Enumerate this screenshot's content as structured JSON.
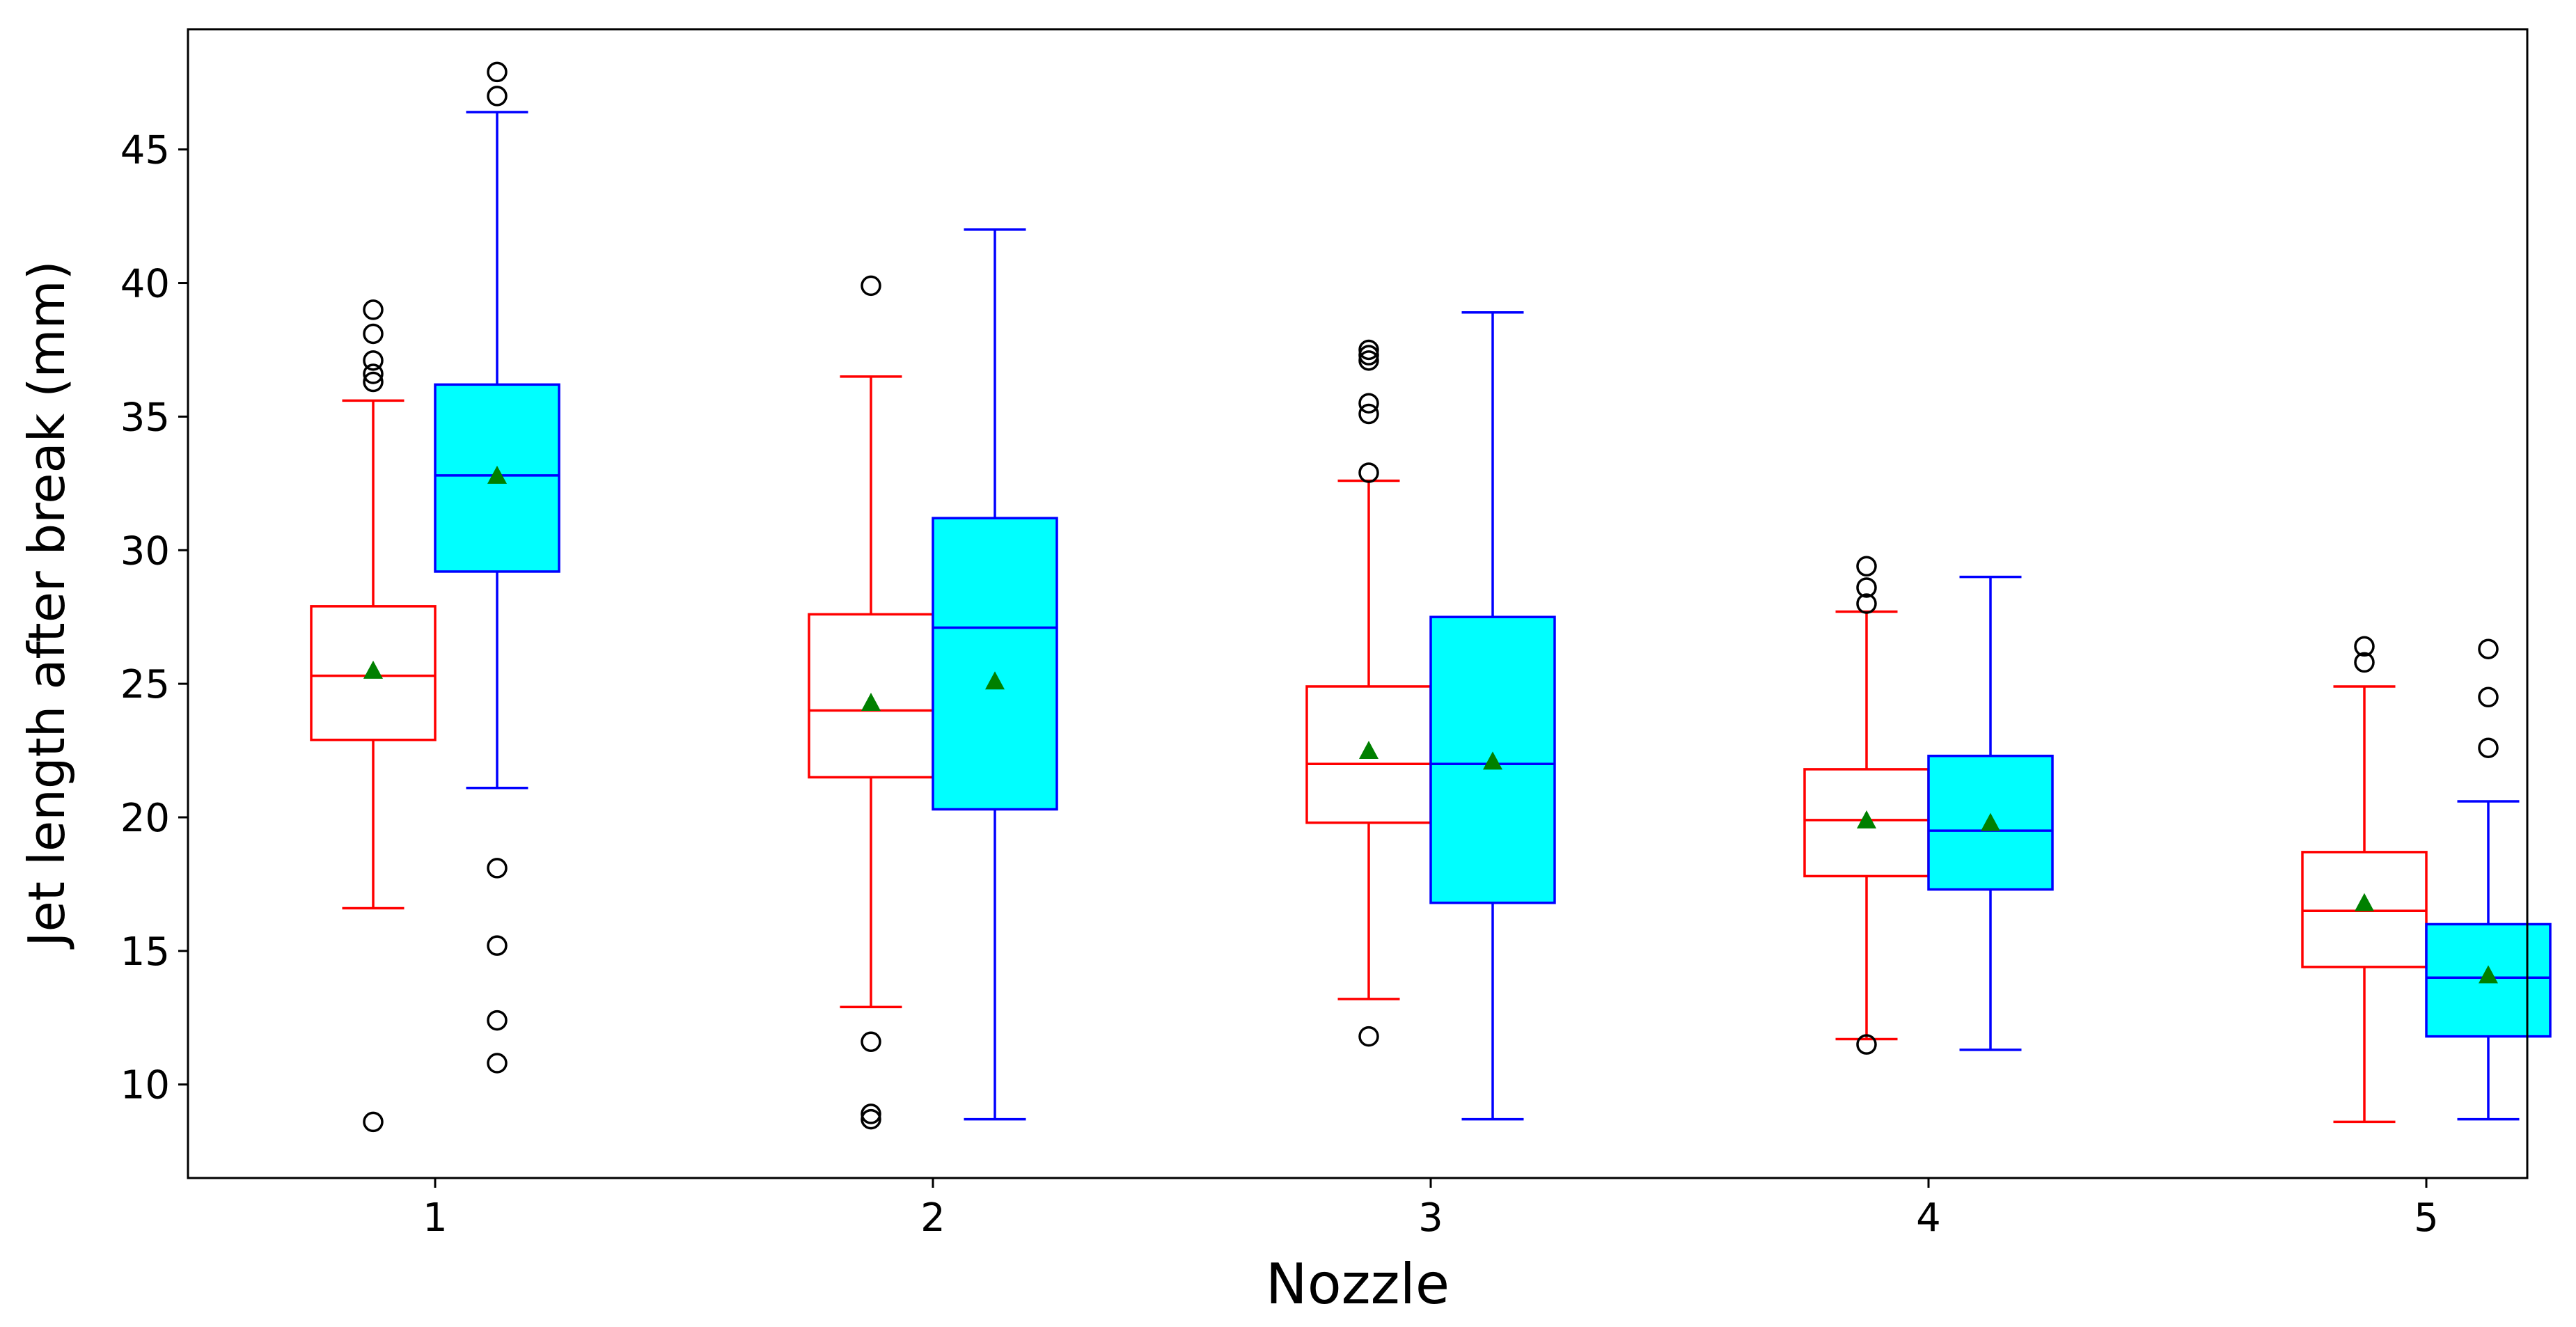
{
  "chart_data": {
    "type": "box",
    "title": "",
    "xlabel": "Nozzle",
    "ylabel": "Jet length after break (mm)",
    "ylim": [
      6.5,
      49.5
    ],
    "yticks": [
      10,
      15,
      20,
      25,
      30,
      35,
      40,
      45
    ],
    "categories": [
      "1",
      "2",
      "3",
      "4",
      "5"
    ],
    "mean_marker_color": "#008000",
    "series": [
      {
        "name": "series-red",
        "edge_color": "#ff0000",
        "fill_color": "#ffffff",
        "boxes": [
          {
            "whisker_low": 16.6,
            "q1": 22.9,
            "median": 25.3,
            "q3": 27.9,
            "whisker_high": 35.6,
            "mean": 25.5,
            "outliers": [
              8.6,
              36.3,
              36.6,
              37.1,
              38.1,
              39.0
            ]
          },
          {
            "whisker_low": 12.9,
            "q1": 21.5,
            "median": 24.0,
            "q3": 27.6,
            "whisker_high": 36.5,
            "mean": 24.3,
            "outliers": [
              8.7,
              8.9,
              11.6,
              39.9
            ]
          },
          {
            "whisker_low": 13.2,
            "q1": 19.8,
            "median": 22.0,
            "q3": 24.9,
            "whisker_high": 32.6,
            "mean": 22.5,
            "outliers": [
              11.8,
              32.9,
              35.1,
              35.5,
              37.1,
              37.3,
              37.5
            ]
          },
          {
            "whisker_low": 11.7,
            "q1": 17.8,
            "median": 19.9,
            "q3": 21.8,
            "whisker_high": 27.7,
            "mean": 19.9,
            "outliers": [
              11.5,
              28.0,
              28.6,
              29.4
            ]
          },
          {
            "whisker_low": 8.6,
            "q1": 14.4,
            "median": 16.5,
            "q3": 18.7,
            "whisker_high": 24.9,
            "mean": 16.8,
            "outliers": [
              25.8,
              26.4
            ]
          }
        ]
      },
      {
        "name": "series-cyan",
        "edge_color": "#0000ff",
        "fill_color": "#00ffff",
        "boxes": [
          {
            "whisker_low": 21.1,
            "q1": 29.2,
            "median": 32.8,
            "q3": 36.2,
            "whisker_high": 46.4,
            "mean": 32.8,
            "outliers": [
              10.8,
              12.4,
              15.2,
              18.1,
              47.0,
              47.9
            ]
          },
          {
            "whisker_low": 8.7,
            "q1": 20.3,
            "median": 27.1,
            "q3": 31.2,
            "whisker_high": 42.0,
            "mean": 25.1,
            "outliers": []
          },
          {
            "whisker_low": 8.7,
            "q1": 16.8,
            "median": 22.0,
            "q3": 27.5,
            "whisker_high": 38.9,
            "mean": 22.1,
            "outliers": []
          },
          {
            "whisker_low": 11.3,
            "q1": 17.3,
            "median": 19.5,
            "q3": 22.3,
            "whisker_high": 29.0,
            "mean": 19.8,
            "outliers": []
          },
          {
            "whisker_low": 8.7,
            "q1": 11.8,
            "median": 14.0,
            "q3": 16.0,
            "whisker_high": 20.6,
            "mean": 14.1,
            "outliers": [
              22.6,
              24.5,
              26.3
            ]
          }
        ]
      }
    ]
  }
}
